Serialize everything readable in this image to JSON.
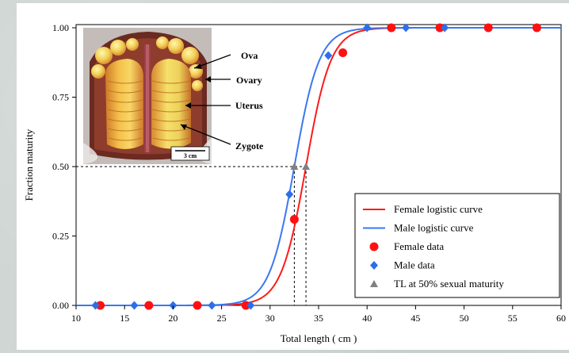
{
  "chart_data": {
    "type": "scatter",
    "title": "",
    "xlabel": "Total length ( cm )",
    "ylabel": "Fraction maturity",
    "xlim": [
      10,
      60
    ],
    "ylim": [
      0,
      1
    ],
    "x_ticks": [
      "10",
      "15",
      "20",
      "25",
      "30",
      "35",
      "40",
      "45",
      "50",
      "55",
      "60"
    ],
    "y_ticks": [
      "0.00",
      "0.25",
      "0.50",
      "0.75",
      "1.00"
    ],
    "grid": false,
    "legend_position": "bottom-right",
    "series": [
      {
        "name": "Female logistic curve",
        "kind": "line",
        "color": "#ff1a1a",
        "model": "logistic",
        "l50": 33.7,
        "slope": 0.78
      },
      {
        "name": "Male logistic curve",
        "kind": "line",
        "color": "#3a78f0",
        "model": "logistic",
        "l50": 32.5,
        "slope": 0.78
      },
      {
        "name": "Female data",
        "kind": "points",
        "marker": "circle",
        "color": "#ff1010",
        "x": [
          12.5,
          17.5,
          22.5,
          27.5,
          32.5,
          37.5,
          42.5,
          47.5,
          52.5,
          57.5
        ],
        "y": [
          0,
          0,
          0,
          0,
          0.31,
          0.91,
          1,
          1,
          1,
          1
        ]
      },
      {
        "name": "Male data",
        "kind": "points",
        "marker": "diamond",
        "color": "#2e6fe8",
        "x": [
          12,
          16,
          20,
          24,
          28,
          32,
          36,
          40,
          44,
          48
        ],
        "y": [
          0,
          0,
          0,
          0,
          0,
          0.4,
          0.9,
          1,
          1,
          1
        ]
      },
      {
        "name": "TL at 50% sexual maturity",
        "kind": "points",
        "marker": "triangle",
        "color": "#808080",
        "x": [
          32.5,
          33.7
        ],
        "y": [
          0.5,
          0.5
        ]
      }
    ],
    "annotations": [
      "Ova",
      "Ovary",
      "Uterus",
      "Zygote"
    ],
    "scale_bar_label": "3 cm"
  }
}
